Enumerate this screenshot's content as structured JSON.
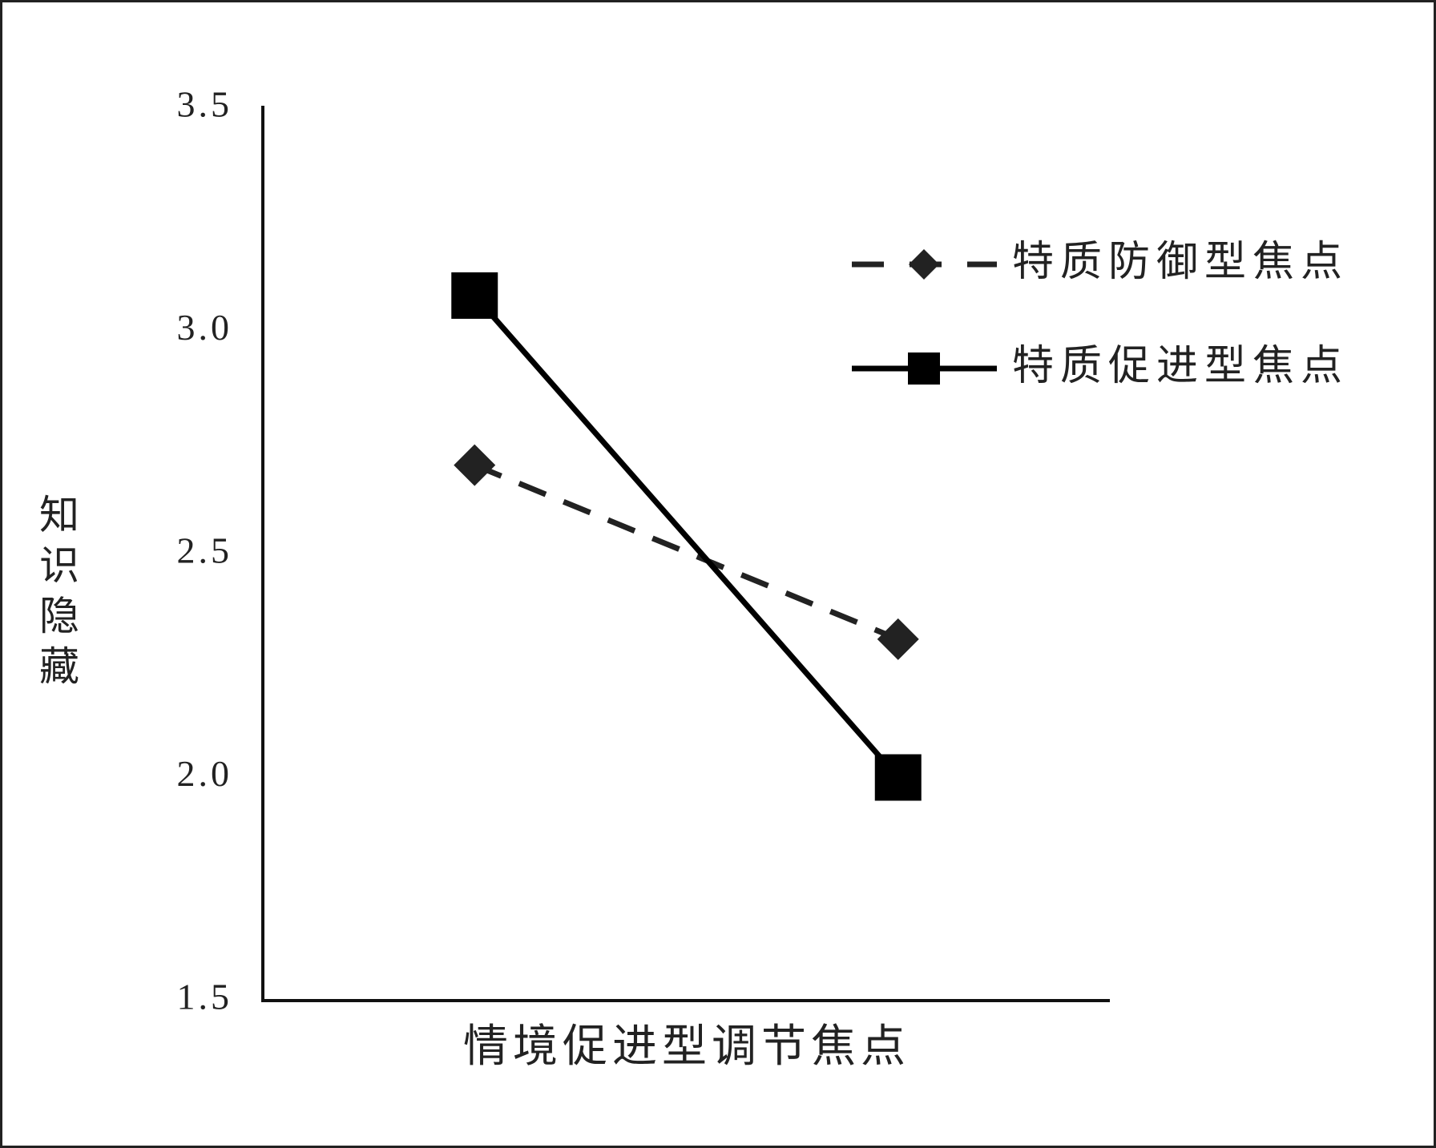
{
  "chart_data": {
    "type": "line",
    "x_label": "情境促进型调节焦点",
    "y_label": "知识隐藏",
    "categories": [
      null,
      null
    ],
    "series": [
      {
        "name": "特质防御型焦点",
        "color": "#222222",
        "dashed": true,
        "marker": "diamond",
        "values": [
          2.7,
          2.31
        ]
      },
      {
        "name": "特质促进型焦点",
        "color": "#000000",
        "dashed": false,
        "marker": "square",
        "values": [
          3.08,
          2.0
        ]
      }
    ],
    "ylim": [
      1.5,
      3.5
    ],
    "yticks": [
      1.5,
      {
        "value": 2,
        "label": "2.0"
      },
      2.5,
      {
        "value": 3,
        "label": "3.0"
      },
      3.5
    ],
    "legend": "upper right"
  }
}
